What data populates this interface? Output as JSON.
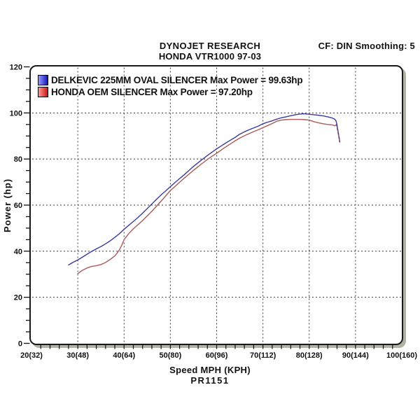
{
  "header": {
    "title": "DYNOJET RESEARCH",
    "subtitle": "HONDA VTR1000 97-03",
    "correction": "CF: DIN  Smoothing: 5"
  },
  "axes": {
    "y_label": "Power (hp)",
    "x_label": "Speed MPH (KPH)",
    "run_id": "PR1151"
  },
  "legend": [
    {
      "label": "DELKEVIC 225MM OVAL SILENCER Max Power = 99.63hp",
      "swatch_from": "#9a9aff",
      "swatch_to": "#1515bb"
    },
    {
      "label": "HONDA OEM SILENCER Max Power = 97.20hp",
      "swatch_from": "#ff9a9a",
      "swatch_to": "#cc1515"
    }
  ],
  "colors": {
    "grid": "#3a3a3a",
    "tick": "#111111",
    "frame": "#1a1a1a",
    "frame_shadow": "#b2b2a4",
    "text": "#111111"
  },
  "chart_data": {
    "type": "line",
    "title": "DYNOJET RESEARCH — HONDA VTR1000 97-03",
    "xlabel": "Speed MPH (KPH)",
    "ylabel": "Power (hp)",
    "xlim": [
      20,
      100
    ],
    "ylim": [
      0,
      120
    ],
    "grid": "dashed",
    "legend_position": "top-left",
    "x_major_ticks": [
      {
        "value": 20,
        "label": "20(32)"
      },
      {
        "value": 30,
        "label": "30(48)"
      },
      {
        "value": 40,
        "label": "40(64)"
      },
      {
        "value": 50,
        "label": "50(80)"
      },
      {
        "value": 60,
        "label": "60(96)"
      },
      {
        "value": 70,
        "label": "70(112)"
      },
      {
        "value": 80,
        "label": "80(128)"
      },
      {
        "value": 90,
        "label": "90(144)"
      },
      {
        "value": 100,
        "label": "100(160)"
      }
    ],
    "x_minor_step": 2,
    "y_major_ticks": [
      0,
      20,
      40,
      60,
      80,
      100,
      120
    ],
    "y_minor_step": 5,
    "series": [
      {
        "name": "DELKEVIC 225MM OVAL SILENCER",
        "max_power_hp": 99.63,
        "color": "#3b3b9d",
        "points": [
          [
            28,
            34.0
          ],
          [
            28.5,
            34.6
          ],
          [
            29,
            35.2
          ],
          [
            30,
            36.2
          ],
          [
            31,
            37.4
          ],
          [
            32,
            38.7
          ],
          [
            33,
            39.9
          ],
          [
            34,
            41.0
          ],
          [
            35,
            42.0
          ],
          [
            36,
            43.2
          ],
          [
            37,
            44.5
          ],
          [
            38,
            46.0
          ],
          [
            39,
            47.6
          ],
          [
            40,
            49.5
          ],
          [
            41,
            51.2
          ],
          [
            42,
            52.9
          ],
          [
            43,
            54.6
          ],
          [
            44,
            56.5
          ],
          [
            45,
            58.5
          ],
          [
            46,
            60.5
          ],
          [
            47,
            62.5
          ],
          [
            48,
            64.4
          ],
          [
            49,
            66.2
          ],
          [
            50,
            68.0
          ],
          [
            51,
            69.8
          ],
          [
            52,
            71.5
          ],
          [
            53,
            73.2
          ],
          [
            54,
            75.0
          ],
          [
            55,
            76.8
          ],
          [
            56,
            78.4
          ],
          [
            57,
            80.0
          ],
          [
            58,
            81.5
          ],
          [
            59,
            83.0
          ],
          [
            60,
            84.4
          ],
          [
            61,
            85.7
          ],
          [
            62,
            87.0
          ],
          [
            63,
            88.2
          ],
          [
            64,
            89.4
          ],
          [
            65,
            90.8
          ],
          [
            66,
            91.8
          ],
          [
            67,
            92.7
          ],
          [
            68,
            93.5
          ],
          [
            69,
            94.3
          ],
          [
            70,
            95.3
          ],
          [
            71,
            96.0
          ],
          [
            72,
            96.6
          ],
          [
            73,
            97.3
          ],
          [
            74,
            97.9
          ],
          [
            75,
            98.3
          ],
          [
            76,
            98.8
          ],
          [
            77,
            99.2
          ],
          [
            78,
            99.5
          ],
          [
            79,
            99.63
          ],
          [
            80,
            99.45
          ],
          [
            81,
            99.2
          ],
          [
            82,
            99.0
          ],
          [
            83,
            98.7
          ],
          [
            84,
            98.3
          ],
          [
            85,
            97.8
          ],
          [
            85.5,
            97.3
          ],
          [
            85.8,
            96.5
          ],
          [
            86,
            94.8
          ],
          [
            86.3,
            91.2
          ],
          [
            86.6,
            87.6
          ]
        ]
      },
      {
        "name": "HONDA OEM SILENCER",
        "max_power_hp": 97.2,
        "color": "#aa5a58",
        "points": [
          [
            30,
            30.2
          ],
          [
            30.5,
            31.0
          ],
          [
            31,
            31.7
          ],
          [
            32,
            32.7
          ],
          [
            33,
            33.4
          ],
          [
            34,
            33.7
          ],
          [
            35,
            34.2
          ],
          [
            36,
            35.1
          ],
          [
            37,
            36.4
          ],
          [
            38,
            38.0
          ],
          [
            38.5,
            39.2
          ],
          [
            39,
            40.6
          ],
          [
            39.5,
            42.6
          ],
          [
            40,
            45.0
          ],
          [
            41,
            47.6
          ],
          [
            42,
            49.7
          ],
          [
            43,
            51.5
          ],
          [
            44,
            53.3
          ],
          [
            45,
            55.3
          ],
          [
            46,
            57.3
          ],
          [
            47,
            59.5
          ],
          [
            48,
            61.7
          ],
          [
            49,
            64.0
          ],
          [
            50,
            66.3
          ],
          [
            51,
            68.1
          ],
          [
            52,
            69.9
          ],
          [
            53,
            71.7
          ],
          [
            54,
            73.4
          ],
          [
            55,
            75.1
          ],
          [
            56,
            76.7
          ],
          [
            57,
            78.3
          ],
          [
            58,
            79.8
          ],
          [
            59,
            81.2
          ],
          [
            60,
            82.5
          ],
          [
            61,
            83.9
          ],
          [
            62,
            85.3
          ],
          [
            63,
            86.6
          ],
          [
            64,
            87.9
          ],
          [
            65,
            89.1
          ],
          [
            66,
            90.1
          ],
          [
            67,
            91.0
          ],
          [
            68,
            91.9
          ],
          [
            69,
            92.7
          ],
          [
            70,
            93.6
          ],
          [
            71,
            94.5
          ],
          [
            72,
            95.4
          ],
          [
            73,
            96.4
          ],
          [
            74,
            96.9
          ],
          [
            75,
            97.1
          ],
          [
            76,
            97.2
          ],
          [
            77,
            97.2
          ],
          [
            78,
            97.2
          ],
          [
            79,
            97.1
          ],
          [
            80,
            96.9
          ],
          [
            81,
            96.2
          ],
          [
            82,
            95.7
          ],
          [
            83,
            95.3
          ],
          [
            84,
            95.0
          ],
          [
            85,
            94.8
          ],
          [
            85.5,
            94.4
          ],
          [
            85.9,
            94.9
          ],
          [
            86.1,
            93.0
          ],
          [
            86.35,
            90.2
          ],
          [
            86.6,
            87.3
          ]
        ]
      }
    ],
    "tail_overlay": {
      "color": "#3b3b9d",
      "dash": "3 3",
      "points": [
        [
          85.9,
          95.1
        ],
        [
          86.1,
          93.1
        ],
        [
          86.35,
          90.3
        ],
        [
          86.6,
          87.4
        ]
      ]
    }
  }
}
